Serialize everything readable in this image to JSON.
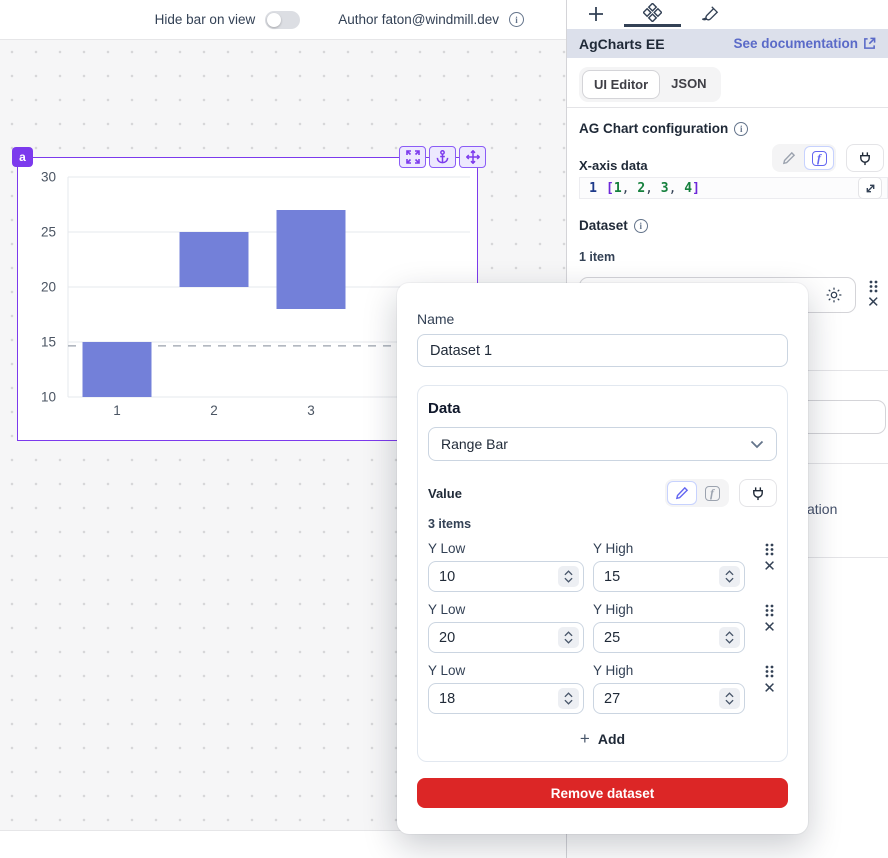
{
  "topbar": {
    "hide_bar_label": "Hide bar on view",
    "author_label": "Author faton@windmill.dev"
  },
  "canvas": {
    "component_badge": "a"
  },
  "chart_data": {
    "type": "bar",
    "subtype": "range-bar",
    "x": [
      1,
      2,
      3,
      4
    ],
    "series": [
      {
        "name": "Dataset 1",
        "ranges": [
          [
            10,
            15
          ],
          [
            20,
            25
          ],
          [
            18,
            27
          ]
        ]
      }
    ],
    "title": "",
    "xlabel": "",
    "ylabel": "",
    "ylim": [
      10,
      30
    ],
    "yticks": [
      10,
      15,
      20,
      25,
      30
    ],
    "grid": true,
    "legend": "none",
    "bar_color": "#7380d9",
    "crosshair_y": 14.65
  },
  "panel": {
    "title": "AgCharts EE",
    "doc_link": "See documentation",
    "tabs": {
      "ui_editor": "UI Editor",
      "json": "JSON"
    },
    "section_title": "AG Chart configuration",
    "xaxis_label": "X-axis data",
    "code": {
      "line_no": "1",
      "tokens": [
        {
          "t": "[",
          "k": "p"
        },
        {
          "t": "1",
          "k": "n"
        },
        {
          "t": ", ",
          "k": "d"
        },
        {
          "t": "2",
          "k": "n"
        },
        {
          "t": ", ",
          "k": "d"
        },
        {
          "t": "3",
          "k": "n"
        },
        {
          "t": ", ",
          "k": "d"
        },
        {
          "t": "4",
          "k": "n"
        },
        {
          "t": "]",
          "k": "p"
        }
      ]
    },
    "dataset_label": "Dataset",
    "dataset_count": "1 item",
    "obscured_fragment": "ation"
  },
  "modal": {
    "name_label": "Name",
    "name_value": "Dataset 1",
    "data_label": "Data",
    "data_type_value": "Range Bar",
    "value_label": "Value",
    "items_count": "3 items",
    "y_low_label": "Y Low",
    "y_high_label": "Y High",
    "items": [
      {
        "y_low": "10",
        "y_high": "15"
      },
      {
        "y_low": "20",
        "y_high": "25"
      },
      {
        "y_low": "18",
        "y_high": "27"
      }
    ],
    "add_label": "Add",
    "remove_label": "Remove dataset"
  },
  "colors": {
    "accent_purple": "#7c3aed",
    "active_indigo": "#6366f1",
    "link_blue": "#5a6ac8",
    "danger_red": "#dc2626",
    "bar_fill": "#7380d9"
  }
}
